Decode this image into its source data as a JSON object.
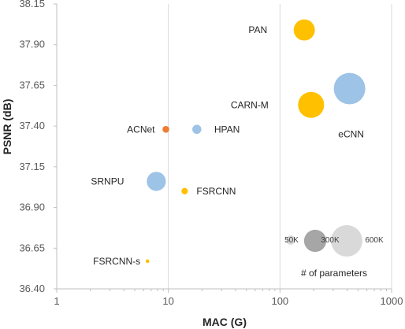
{
  "chart_data": {
    "type": "scatter",
    "title": "",
    "xlabel": "MAC (G)",
    "ylabel": "PSNR (dB)",
    "x_scale": "log",
    "xlim": [
      1,
      1000
    ],
    "ylim": [
      36.4,
      38.15
    ],
    "x_ticks": [
      "1",
      "10",
      "100",
      "1000"
    ],
    "y_ticks": [
      "36.40",
      "36.65",
      "36.90",
      "37.15",
      "37.40",
      "37.65",
      "37.90",
      "38.15"
    ],
    "grid": "vertical lines at major x ticks",
    "bubble_size_meaning": "# of parameters",
    "colors": {
      "ours": "#ED7D31",
      "blue": "#9DC3E6",
      "gold": "#FFC000",
      "legend_light": "#D9D9D9",
      "legend_mid": "#BFBFBF",
      "legend_dark": "#A6A6A6"
    },
    "points": [
      {
        "name": "eCNN",
        "x": 420,
        "y": 37.63,
        "params_k": 600,
        "color": "#9DC3E6"
      },
      {
        "name": "PAN",
        "x": 165,
        "y": 37.99,
        "params_k": 272,
        "color": "#FFC000"
      },
      {
        "name": "CARN-M",
        "x": 190,
        "y": 37.53,
        "params_k": 412,
        "color": "#FFC000"
      },
      {
        "name": "HPAN",
        "x": 18,
        "y": 37.38,
        "params_k": 50,
        "color": "#9DC3E6"
      },
      {
        "name": "ACNet",
        "x": 9.5,
        "y": 37.38,
        "params_k": 28,
        "color": "#ED7D31"
      },
      {
        "name": "SRNPU",
        "x": 7.8,
        "y": 37.06,
        "params_k": 220,
        "color": "#9DC3E6"
      },
      {
        "name": "FSRCNN",
        "x": 14,
        "y": 37.0,
        "params_k": 25,
        "color": "#FFC000"
      },
      {
        "name": "FSRCNN-s",
        "x": 6.5,
        "y": 36.57,
        "params_k": 8,
        "color": "#FFC000"
      }
    ],
    "legend": {
      "title": "# of parameters",
      "entries": [
        {
          "label": "50K",
          "params_k": 50
        },
        {
          "label": "300K",
          "params_k": 300
        },
        {
          "label": "600K",
          "params_k": 600
        }
      ]
    }
  }
}
